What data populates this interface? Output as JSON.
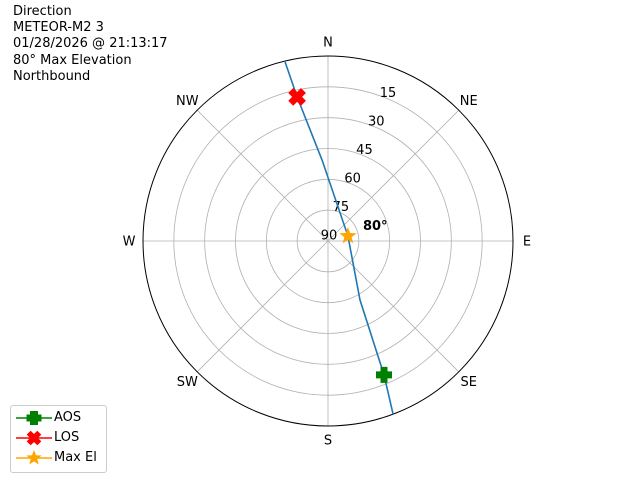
{
  "title_lines": [
    "Direction",
    "METEOR-M2 3",
    "01/28/2026 @ 21:13:17",
    "80° Max Elevation",
    "Northbound"
  ],
  "chart_data": {
    "type": "polar",
    "theta_direction": "clockwise",
    "theta_zero": "N",
    "direction_labels": [
      {
        "label": "N",
        "az": 0
      },
      {
        "label": "NE",
        "az": 45
      },
      {
        "label": "E",
        "az": 90
      },
      {
        "label": "SE",
        "az": 135
      },
      {
        "label": "S",
        "az": 180
      },
      {
        "label": "SW",
        "az": 225
      },
      {
        "label": "W",
        "az": 270
      },
      {
        "label": "NW",
        "az": 315
      }
    ],
    "radial_axis": "elevation (center = 90, edge = 0)",
    "radial_ticks": [
      "15",
      "30",
      "45",
      "60",
      "75",
      "90"
    ],
    "grid": true,
    "track": {
      "color": "#1f77b4",
      "points": [
        {
          "az": 346.5,
          "el": 0
        },
        {
          "az": 347.9,
          "el": 18.3
        },
        {
          "az": 355.8,
          "el": 50.5
        },
        {
          "az": 76,
          "el": 80
        },
        {
          "az": 151.5,
          "el": 57.4
        },
        {
          "az": 157.3,
          "el": 19.4
        },
        {
          "az": 159.4,
          "el": 0
        }
      ]
    },
    "markers": [
      {
        "name": "AOS",
        "az": 157.3,
        "el": 19.4,
        "color": "#008000",
        "shape": "plus"
      },
      {
        "name": "LOS",
        "az": 347.9,
        "el": 18.3,
        "color": "#ff0000",
        "shape": "x"
      },
      {
        "name": "Max El",
        "az": 76,
        "el": 80,
        "color": "#ffa500",
        "shape": "star"
      }
    ],
    "annotation": "80°",
    "legend_placement": "lower-left"
  }
}
